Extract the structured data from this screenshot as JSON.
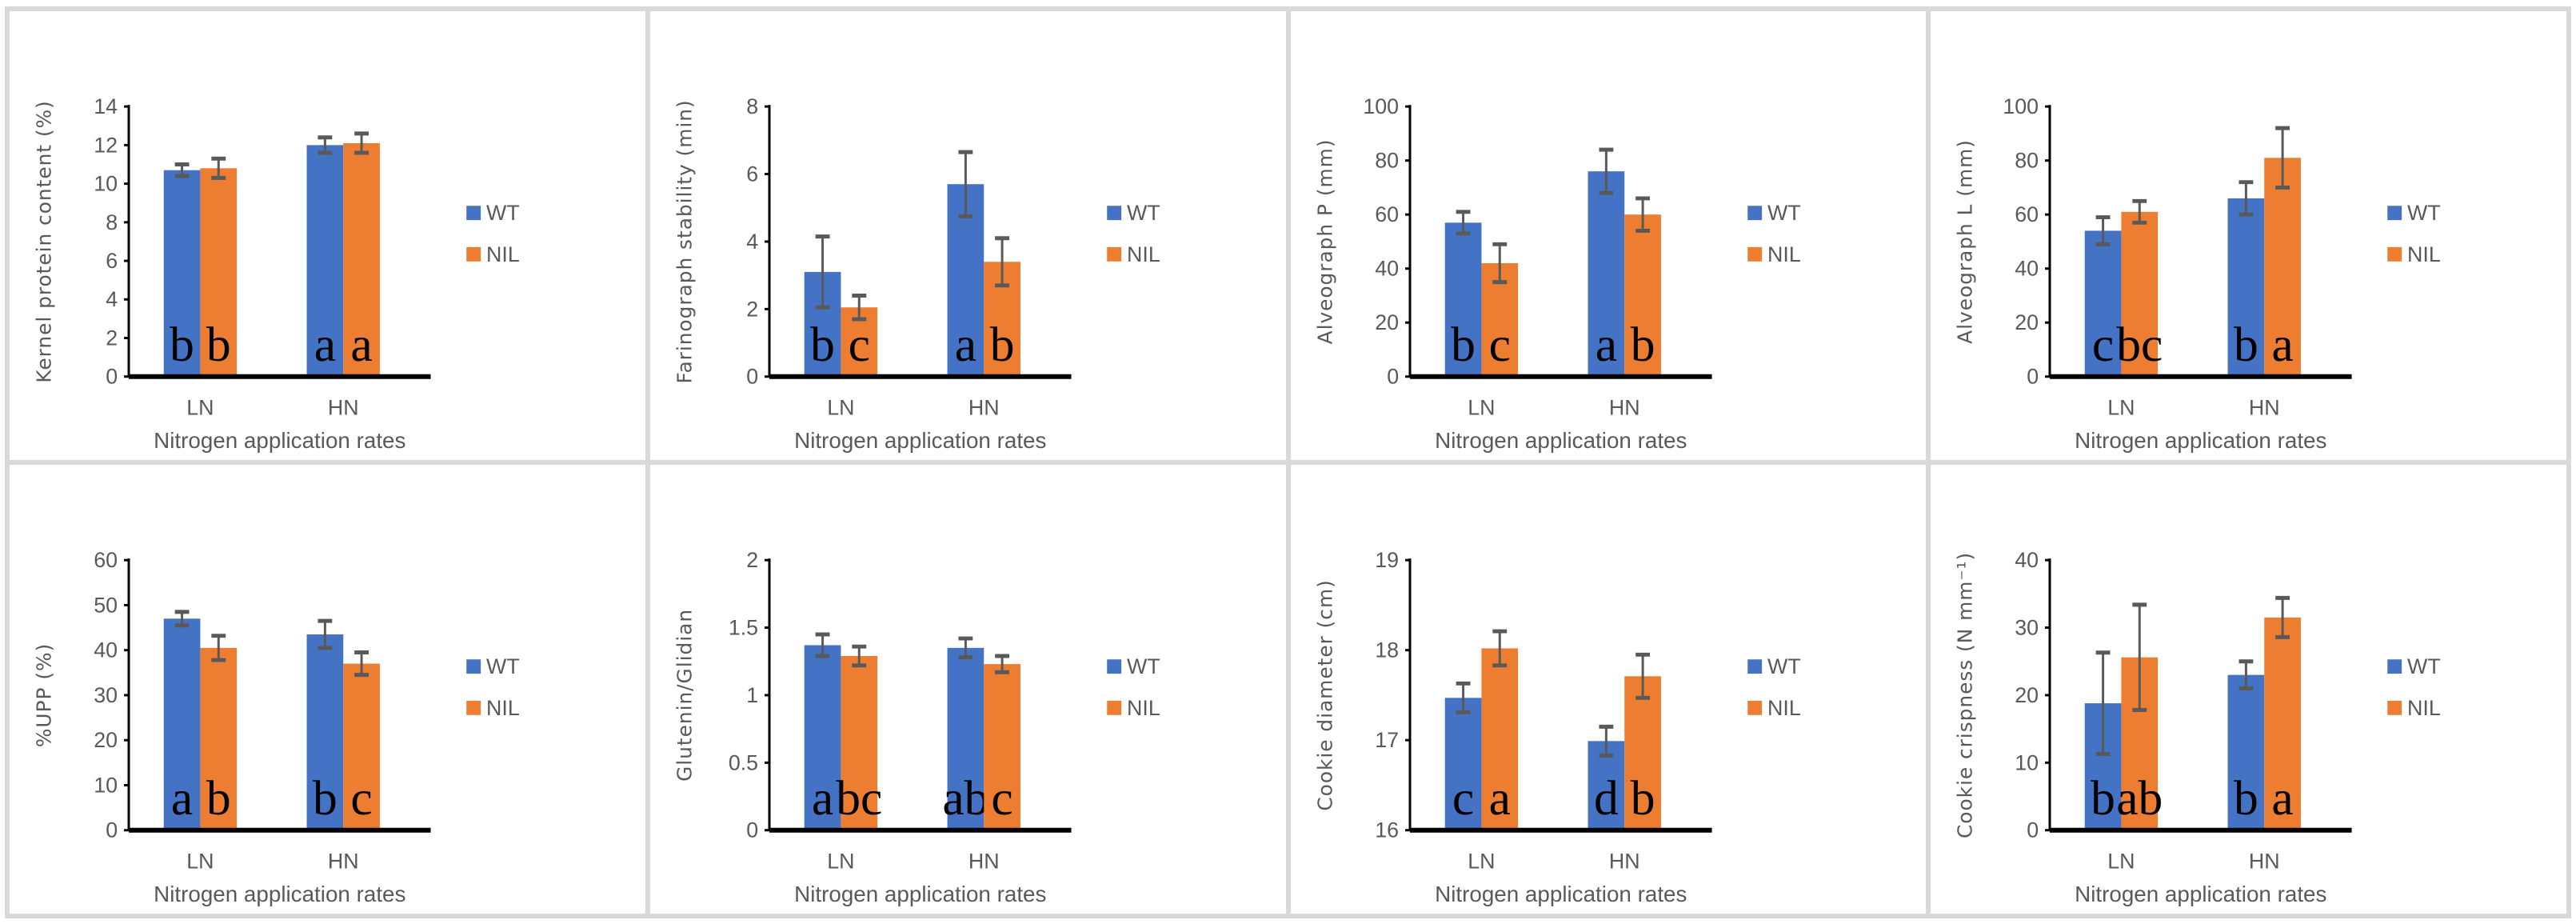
{
  "colors": {
    "WT": "#4472c4",
    "NIL": "#ed7d31",
    "error": "#595959",
    "axis": "#000000"
  },
  "chart_data": [
    {
      "type": "bar",
      "ylabel": "Kernel protein content (%)",
      "xlabel": "Nitrogen application rates",
      "categories": [
        "LN",
        "HN"
      ],
      "ylim": [
        0,
        14
      ],
      "yticks": [
        0,
        2,
        4,
        6,
        8,
        10,
        12,
        14
      ],
      "legend": "right",
      "series": [
        {
          "name": "WT",
          "values": [
            10.7,
            12.0
          ],
          "errors": [
            0.3,
            0.4
          ],
          "letters": [
            "b",
            "a"
          ]
        },
        {
          "name": "NIL",
          "values": [
            10.8,
            12.1
          ],
          "errors": [
            0.5,
            0.5
          ],
          "letters": [
            "b",
            "a"
          ]
        }
      ]
    },
    {
      "type": "bar",
      "ylabel": "Farinograph stability (min)",
      "xlabel": "Nitrogen application rates",
      "categories": [
        "LN",
        "HN"
      ],
      "ylim": [
        0,
        8
      ],
      "yticks": [
        0,
        2,
        4,
        6,
        8
      ],
      "legend": "right",
      "series": [
        {
          "name": "WT",
          "values": [
            3.1,
            5.7
          ],
          "errors": [
            1.05,
            0.95
          ],
          "letters": [
            "b",
            "a"
          ]
        },
        {
          "name": "NIL",
          "values": [
            2.05,
            3.4
          ],
          "errors": [
            0.35,
            0.7
          ],
          "letters": [
            "c",
            "b"
          ]
        }
      ]
    },
    {
      "type": "bar",
      "ylabel": "Alveograph P (mm)",
      "xlabel": "Nitrogen application rates",
      "categories": [
        "LN",
        "HN"
      ],
      "ylim": [
        0,
        100
      ],
      "yticks": [
        0,
        20,
        40,
        60,
        80,
        100
      ],
      "legend": "right",
      "series": [
        {
          "name": "WT",
          "values": [
            57,
            76
          ],
          "errors": [
            4,
            8
          ],
          "letters": [
            "b",
            "a"
          ]
        },
        {
          "name": "NIL",
          "values": [
            42,
            60
          ],
          "errors": [
            7,
            6
          ],
          "letters": [
            "c",
            "b"
          ]
        }
      ]
    },
    {
      "type": "bar",
      "ylabel": "Alveograph L (mm)",
      "xlabel": "Nitrogen application rates",
      "categories": [
        "LN",
        "HN"
      ],
      "ylim": [
        0,
        100
      ],
      "yticks": [
        0,
        20,
        40,
        60,
        80,
        100
      ],
      "legend": "right",
      "series": [
        {
          "name": "WT",
          "values": [
            54,
            66
          ],
          "errors": [
            5,
            6
          ],
          "letters": [
            "c",
            "b"
          ]
        },
        {
          "name": "NIL",
          "values": [
            61,
            81
          ],
          "errors": [
            4,
            11
          ],
          "letters": [
            "bc",
            "a"
          ]
        }
      ]
    },
    {
      "type": "bar",
      "ylabel": "%UPP (%)",
      "xlabel": "Nitrogen application rates",
      "categories": [
        "LN",
        "HN"
      ],
      "ylim": [
        0,
        60
      ],
      "yticks": [
        0,
        10,
        20,
        30,
        40,
        50,
        60
      ],
      "legend": "right",
      "series": [
        {
          "name": "WT",
          "values": [
            47,
            43.5
          ],
          "errors": [
            1.5,
            3
          ],
          "letters": [
            "a",
            "b"
          ]
        },
        {
          "name": "NIL",
          "values": [
            40.5,
            37
          ],
          "errors": [
            2.7,
            2.5
          ],
          "letters": [
            "b",
            "c"
          ]
        }
      ]
    },
    {
      "type": "bar",
      "ylabel": "Glutenin/Glidian",
      "xlabel": "Nitrogen application rates",
      "categories": [
        "LN",
        "HN"
      ],
      "ylim": [
        0,
        2
      ],
      "yticks": [
        0,
        0.5,
        1,
        1.5,
        2
      ],
      "legend": "right",
      "series": [
        {
          "name": "WT",
          "values": [
            1.37,
            1.35
          ],
          "errors": [
            0.08,
            0.07
          ],
          "letters": [
            "a",
            "ab"
          ]
        },
        {
          "name": "NIL",
          "values": [
            1.29,
            1.23
          ],
          "errors": [
            0.07,
            0.06
          ],
          "letters": [
            "bc",
            "c"
          ]
        }
      ]
    },
    {
      "type": "bar",
      "ylabel": "Cookie diameter (cm)",
      "xlabel": "Nitrogen application rates",
      "categories": [
        "LN",
        "HN"
      ],
      "ylim": [
        16,
        19
      ],
      "yticks": [
        16,
        17,
        18,
        19
      ],
      "legend": "right",
      "series": [
        {
          "name": "WT",
          "values": [
            17.47,
            16.99
          ],
          "errors": [
            0.16,
            0.16
          ],
          "letters": [
            "c",
            "d"
          ]
        },
        {
          "name": "NIL",
          "values": [
            18.02,
            17.71
          ],
          "errors": [
            0.19,
            0.24
          ],
          "letters": [
            "a",
            "b"
          ]
        }
      ]
    },
    {
      "type": "bar",
      "ylabel": "Cookie crispness (N mm⁻¹)",
      "xlabel": "Nitrogen application rates",
      "categories": [
        "LN",
        "HN"
      ],
      "ylim": [
        0,
        40
      ],
      "yticks": [
        0,
        10,
        20,
        30,
        40
      ],
      "legend": "right",
      "series": [
        {
          "name": "WT",
          "values": [
            18.8,
            23
          ],
          "errors": [
            7.5,
            2
          ],
          "letters": [
            "b",
            "b"
          ]
        },
        {
          "name": "NIL",
          "values": [
            25.6,
            31.5
          ],
          "errors": [
            7.8,
            2.9
          ],
          "letters": [
            "ab",
            "a"
          ]
        }
      ]
    }
  ]
}
